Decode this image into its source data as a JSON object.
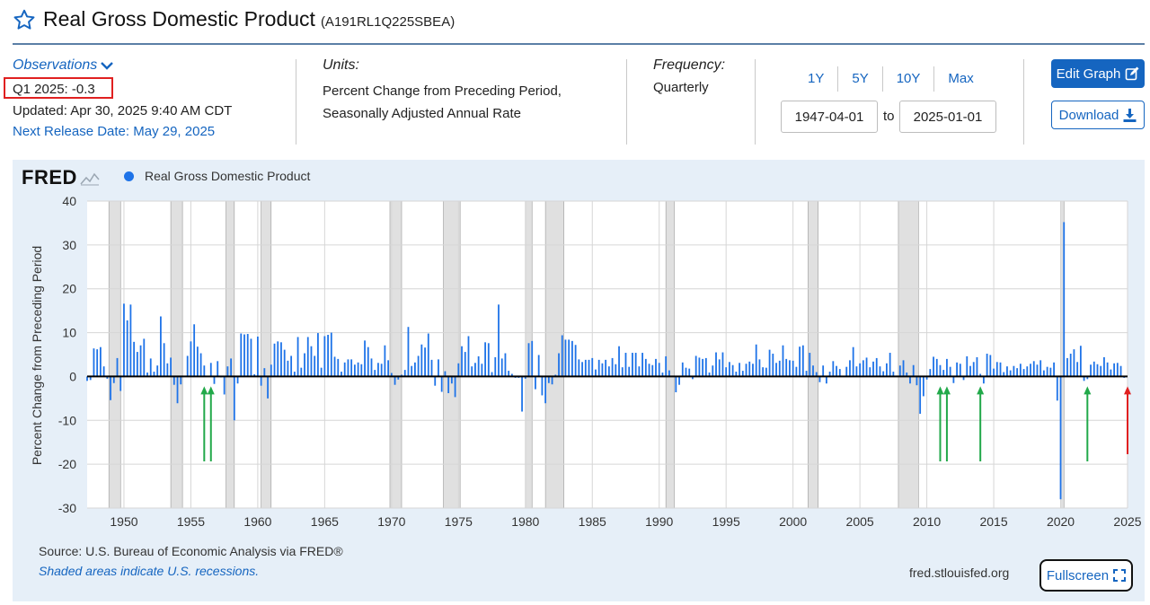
{
  "header": {
    "title": "Real Gross Domestic Product",
    "series_id": "(A191RL1Q225SBEA)"
  },
  "observations": {
    "label": "Observations",
    "latest": "Q1 2025: -0.3",
    "updated": "Updated: Apr 30, 2025 9:40 AM CDT",
    "next_release": "Next Release Date: May 29, 2025"
  },
  "units": {
    "label": "Units:",
    "line1": "Percent Change from Preceding Period,",
    "line2": "Seasonally Adjusted Annual Rate"
  },
  "frequency": {
    "label": "Frequency:",
    "value": "Quarterly"
  },
  "range_buttons": [
    "1Y",
    "5Y",
    "10Y",
    "Max"
  ],
  "dates": {
    "start": "1947-04-01",
    "to": "to",
    "end": "2025-01-01"
  },
  "buttons": {
    "edit": "Edit Graph",
    "download": "Download",
    "fullscreen": "Fullscreen"
  },
  "chart_meta": {
    "logo": "FRED",
    "source": "Source: U.S. Bureau of Economic Analysis via FRED®",
    "shaded_note": "Shaded areas indicate U.S. recessions.",
    "url": "fred.stlouisfed.org"
  },
  "colors": {
    "series": "#1e73e8",
    "recession": "#e0e0e0",
    "annotation_green": "#22a94a",
    "annotation_red": "#e02020",
    "accent": "#1565c0"
  },
  "chart_data": {
    "type": "bar",
    "title": "",
    "legend": [
      "Real Gross Domestic Product"
    ],
    "ylabel": "Percent Change from Preceding Period",
    "xlabel": "",
    "ylim": [
      -30,
      40
    ],
    "yticks": [
      40,
      30,
      20,
      10,
      0,
      -10,
      -20,
      -30
    ],
    "xlim": [
      1947.25,
      2025.0
    ],
    "xticks": [
      1950,
      1955,
      1960,
      1965,
      1970,
      1975,
      1980,
      1985,
      1990,
      1995,
      2000,
      2005,
      2010,
      2015,
      2020,
      2025
    ],
    "grid": true,
    "recessions": [
      [
        1948.875,
        1949.75
      ],
      [
        1953.5,
        1954.375
      ],
      [
        1957.625,
        1958.25
      ],
      [
        1960.25,
        1961.0
      ],
      [
        1969.875,
        1970.75
      ],
      [
        1973.875,
        1975.125
      ],
      [
        1980.0,
        1980.5
      ],
      [
        1981.5,
        1982.875
      ],
      [
        1990.5,
        1991.125
      ],
      [
        2001.125,
        2001.875
      ],
      [
        2007.875,
        2009.375
      ],
      [
        2020.0,
        2020.25
      ]
    ],
    "series": [
      {
        "name": "Real Gross Domestic Product",
        "start": "1947-04-01",
        "frequency": "quarterly",
        "values": [
          -1.0,
          -0.8,
          6.4,
          6.2,
          6.7,
          2.3,
          -0.5,
          -5.4,
          -1.5,
          4.2,
          -3.3,
          16.6,
          12.8,
          16.4,
          7.9,
          5.6,
          7.1,
          8.6,
          0.9,
          4.1,
          1.1,
          2.5,
          13.7,
          7.6,
          3.0,
          4.3,
          -1.9,
          -6.1,
          -1.8,
          0.0,
          4.7,
          8.0,
          11.9,
          6.8,
          5.3,
          2.5,
          0.0,
          3.1,
          -1.7,
          3.5,
          -0.2,
          -4.1,
          2.3,
          4.1,
          -10.0,
          -1.6,
          9.8,
          9.6,
          9.7,
          8.6,
          0.5,
          9.1,
          -2.1,
          1.9,
          -5.0,
          2.7,
          7.5,
          8.0,
          7.8,
          6.1,
          3.6,
          4.7,
          1.1,
          9.0,
          2.0,
          5.3,
          9.0,
          6.9,
          4.7,
          9.9,
          2.0,
          9.2,
          9.5,
          10.0,
          4.5,
          4.0,
          1.1,
          3.2,
          3.9,
          3.9,
          2.7,
          3.2,
          2.8,
          8.2,
          6.7,
          4.1,
          1.5,
          3.1,
          2.9,
          7.1,
          3.7,
          0.8,
          -1.9,
          -0.7,
          0.4,
          1.5,
          11.3,
          2.4,
          3.2,
          4.7,
          7.3,
          6.6,
          9.8,
          3.8,
          -2.1,
          3.9,
          -3.5,
          1.2,
          -3.8,
          -1.6,
          -4.7,
          3.0,
          6.9,
          5.6,
          9.2,
          2.3,
          3.1,
          4.6,
          2.9,
          7.8,
          7.6,
          1.0,
          4.4,
          16.4,
          4.1,
          5.3,
          1.3,
          0.6,
          -0.3,
          -0.3,
          -8.0,
          -0.5,
          7.6,
          8.1,
          -2.9,
          4.9,
          -4.3,
          -6.1,
          -1.5,
          -1.8,
          0.4,
          5.3,
          9.4,
          8.4,
          8.4,
          8.1,
          7.2,
          3.9,
          3.3,
          3.8,
          3.8,
          4.2,
          1.6,
          3.8,
          3.0,
          3.8,
          2.3,
          4.2,
          2.8,
          6.9,
          2.1,
          5.4,
          2.2,
          5.4,
          5.4,
          2.3,
          5.4,
          4.0,
          2.9,
          2.6,
          4.0,
          3.1,
          0.9,
          4.6,
          1.4,
          0.0,
          -3.6,
          -1.9,
          3.2,
          2.0,
          1.8,
          -0.6,
          4.7,
          4.3,
          4.0,
          4.2,
          0.9,
          2.5,
          5.5,
          3.9,
          5.5,
          2.1,
          3.3,
          2.6,
          1.1,
          3.1,
          1.3,
          2.9,
          3.4,
          2.9,
          7.3,
          3.9,
          2.1,
          2.0,
          6.1,
          5.2,
          3.1,
          3.6,
          7.1,
          4.0,
          3.7,
          3.6,
          2.2,
          6.8,
          7.1,
          1.3,
          5.4,
          2.5,
          1.0,
          -1.3,
          2.5,
          -1.6,
          1.1,
          3.5,
          2.4,
          1.7,
          0.1,
          2.2,
          3.7,
          6.7,
          2.3,
          3.0,
          3.7,
          4.3,
          2.1,
          3.4,
          4.2,
          2.3,
          1.2,
          3.0,
          5.4,
          1.1,
          0.2,
          2.5,
          3.7,
          0.9,
          -1.6,
          2.6,
          -2.0,
          -8.5,
          -4.5,
          -0.7,
          1.7,
          4.5,
          4.0,
          2.6,
          1.5,
          4.0,
          2.2,
          -1.5,
          3.2,
          2.9,
          -0.8,
          4.6,
          2.4,
          3.3,
          4.4,
          0.6,
          -1.6,
          5.2,
          4.9,
          1.8,
          3.3,
          3.2,
          1.0,
          2.3,
          1.4,
          2.4,
          1.9,
          2.9,
          1.7,
          2.3,
          2.9,
          3.5,
          2.7,
          3.7,
          1.4,
          2.2,
          2.0,
          3.2,
          -5.5,
          -28.0,
          35.2,
          4.2,
          5.2,
          6.2,
          3.3,
          7.0,
          -1.0,
          -0.6,
          2.7,
          3.4,
          2.8,
          2.4,
          4.4,
          3.2,
          1.6,
          3.0,
          3.1,
          2.4,
          -0.3
        ]
      }
    ]
  }
}
